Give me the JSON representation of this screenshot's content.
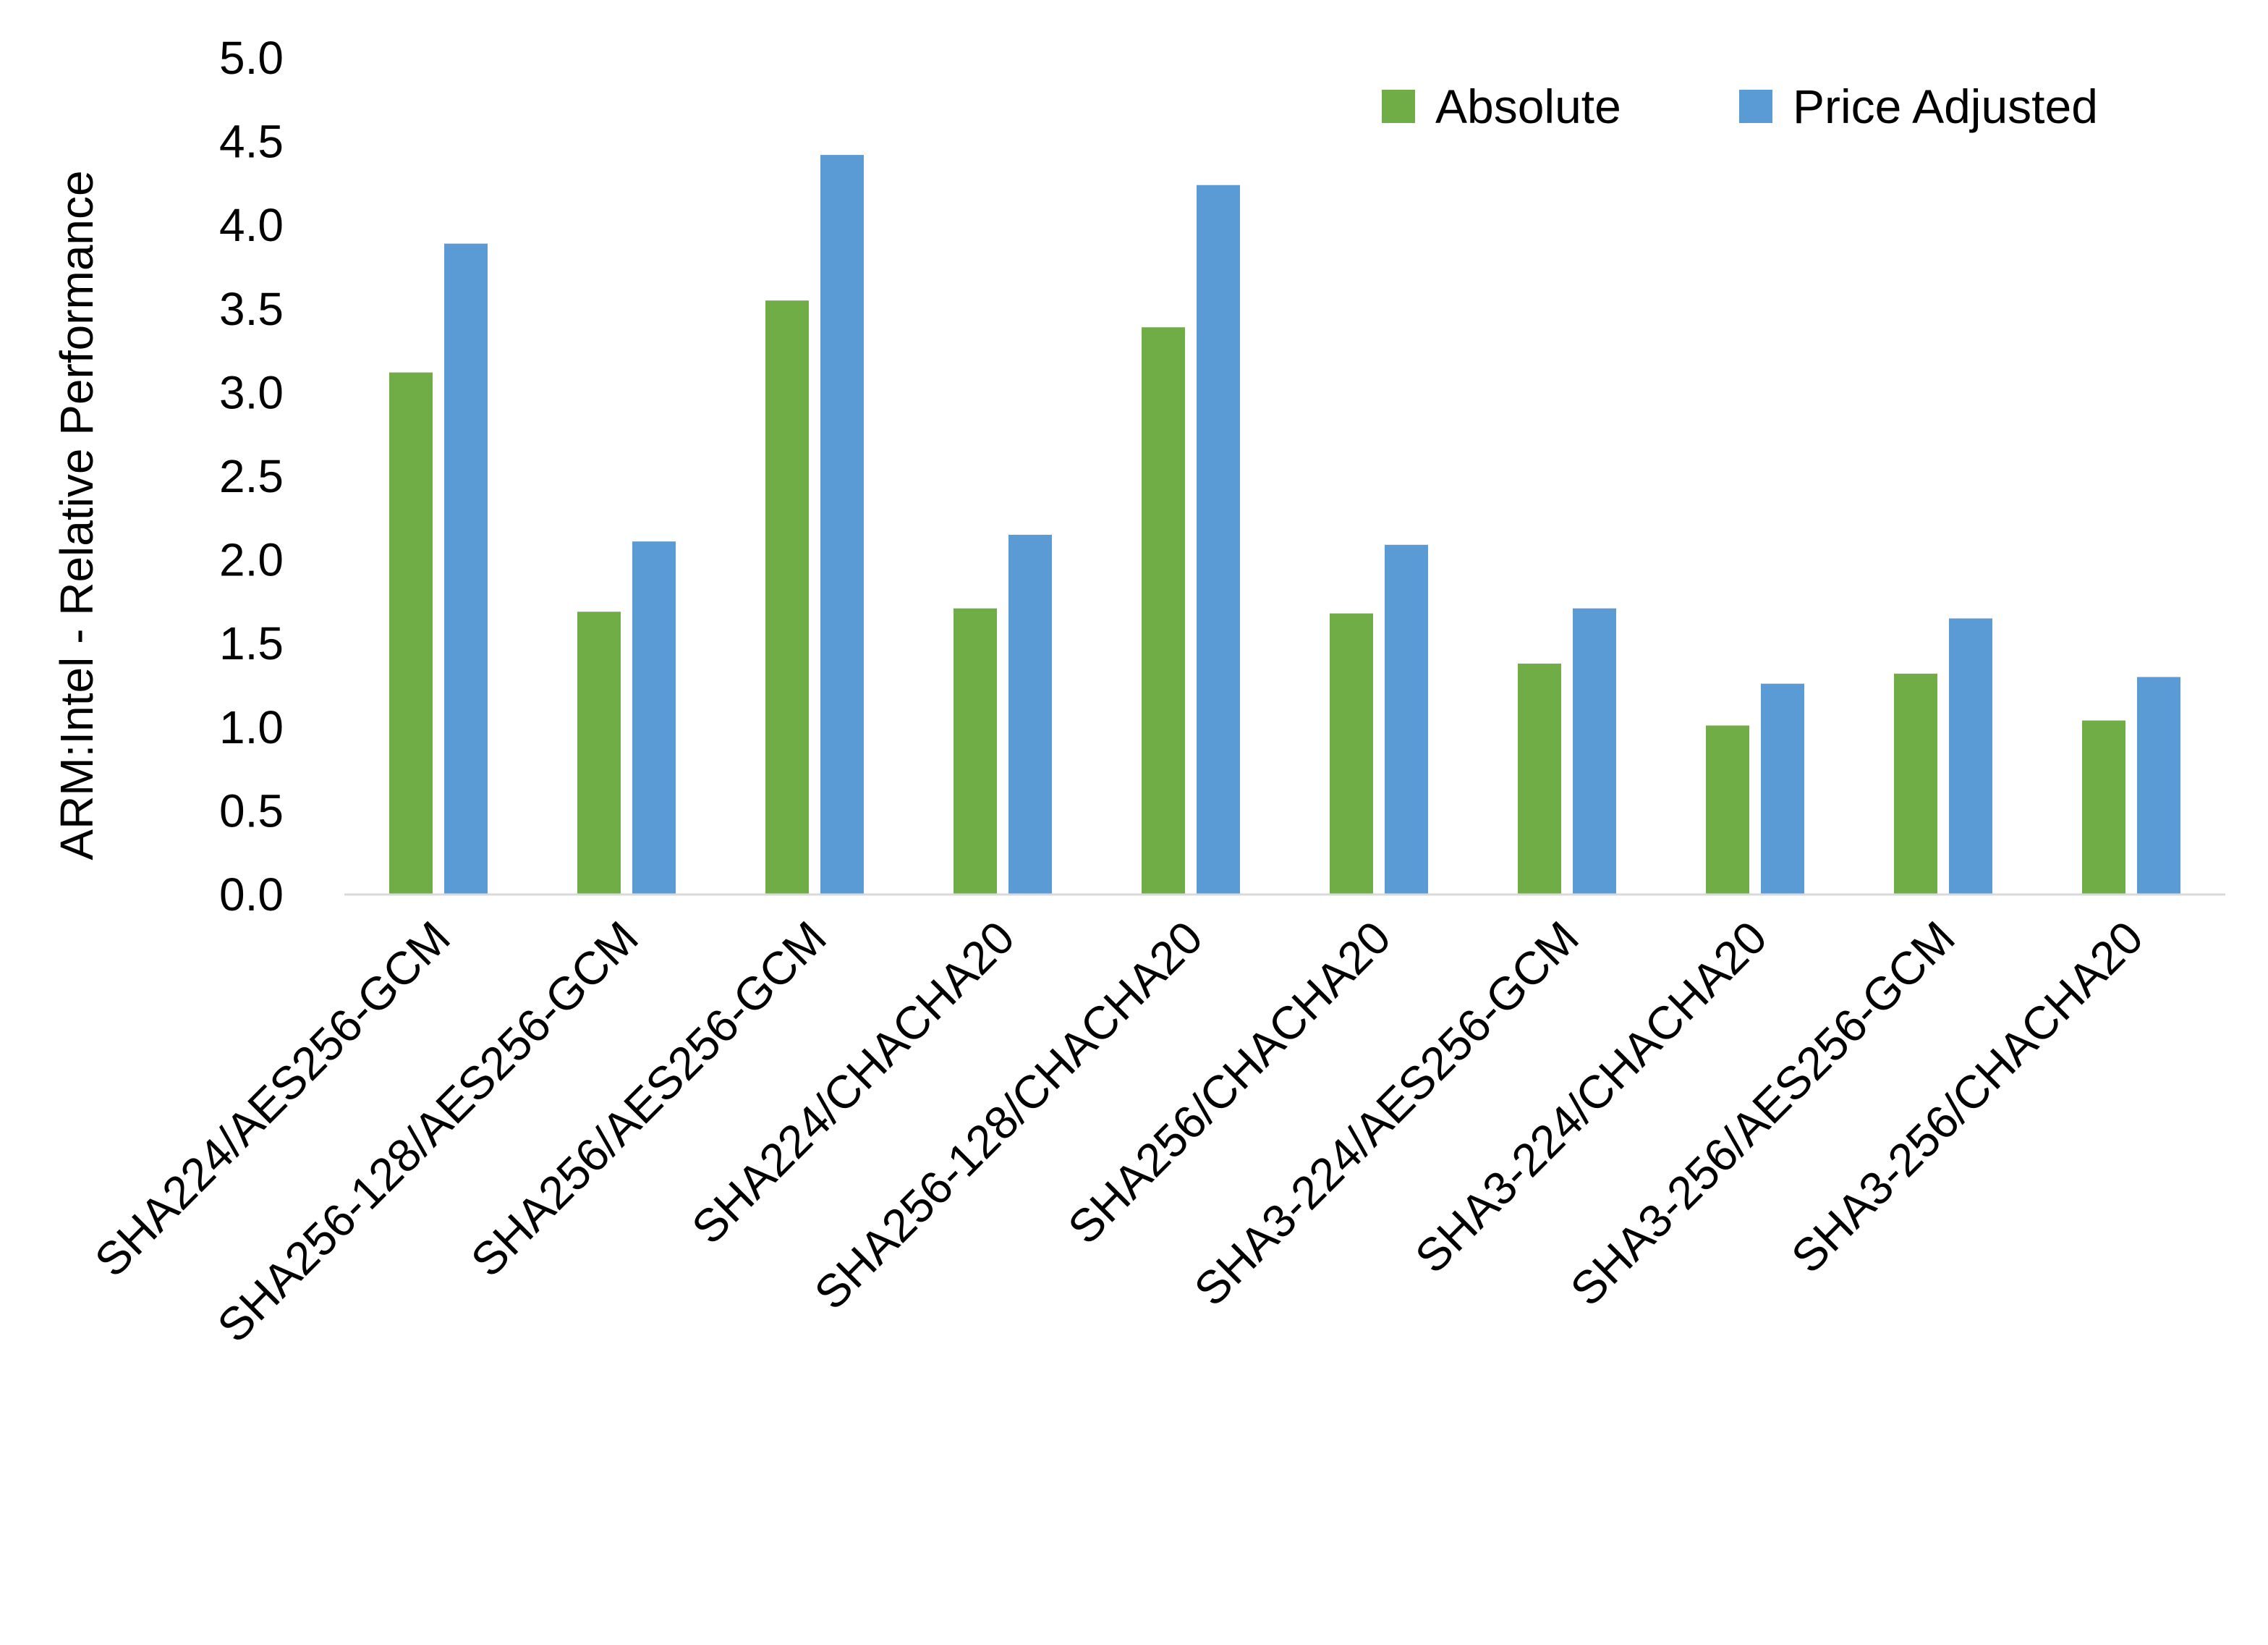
{
  "chart_data": {
    "type": "bar",
    "title": "",
    "xlabel": "",
    "ylabel": "ARM:Intel - Relative Performance",
    "ylim": [
      0,
      5.0
    ],
    "yticks": [
      "0.0",
      "0.5",
      "1.0",
      "1.5",
      "2.0",
      "2.5",
      "3.0",
      "3.5",
      "4.0",
      "4.5",
      "5.0"
    ],
    "grid": false,
    "legend_position": "top-right",
    "categories": [
      "SHA224/AES256-GCM",
      "SHA256-128/AES256-GCM",
      "SHA256/AES256-GCM",
      "SHA224/CHACHA20",
      "SHA256-128/CHACHA20",
      "SHA256/CHACHA20",
      "SHA3-224/AES256-GCM",
      "SHA3-224/CHACHA20",
      "SHA3-256/AES256-GCM",
      "SHA3-256/CHACHA20"
    ],
    "series": [
      {
        "name": "Absolute",
        "color": "#70AD47",
        "values": [
          3.12,
          1.69,
          3.55,
          1.71,
          3.39,
          1.68,
          1.38,
          1.01,
          1.32,
          1.04
        ]
      },
      {
        "name": "Price Adjusted",
        "color": "#5B9BD5",
        "values": [
          3.89,
          2.11,
          4.42,
          2.15,
          4.24,
          2.09,
          1.71,
          1.26,
          1.65,
          1.3
        ]
      }
    ]
  }
}
